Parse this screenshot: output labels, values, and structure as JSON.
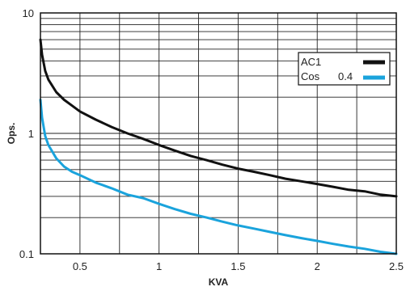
{
  "chart_data": {
    "type": "line",
    "x_axis": {
      "label": "KVA",
      "range": [
        0.25,
        2.5
      ],
      "ticks": [
        0.5,
        1,
        1.5,
        2,
        2.5
      ],
      "tick_labels": [
        "0.5",
        "1",
        "1.5",
        "2",
        "2.5"
      ]
    },
    "y_axis": {
      "label": "Ops.",
      "scale": "log",
      "range": [
        0.1,
        10
      ],
      "ticks": [
        0.1,
        1,
        10
      ],
      "tick_labels": [
        "0.1",
        "1",
        "10"
      ]
    },
    "grid": true,
    "legend": {
      "placement": "top-right",
      "entries": [
        {
          "label_a": "AC1",
          "label_b": "",
          "color": "#111111"
        },
        {
          "label_a": "Cos",
          "label_b": "0.4",
          "color": "#1aa3dc"
        }
      ]
    },
    "series": [
      {
        "name": "AC1",
        "color": "#111111",
        "points": [
          [
            0.25,
            6.0
          ],
          [
            0.26,
            4.5
          ],
          [
            0.28,
            3.3
          ],
          [
            0.3,
            2.8
          ],
          [
            0.35,
            2.2
          ],
          [
            0.4,
            1.9
          ],
          [
            0.45,
            1.7
          ],
          [
            0.5,
            1.52
          ],
          [
            0.6,
            1.3
          ],
          [
            0.7,
            1.13
          ],
          [
            0.8,
            1.0
          ],
          [
            0.9,
            0.9
          ],
          [
            1.0,
            0.8
          ],
          [
            1.1,
            0.72
          ],
          [
            1.2,
            0.65
          ],
          [
            1.3,
            0.6
          ],
          [
            1.4,
            0.55
          ],
          [
            1.5,
            0.51
          ],
          [
            1.6,
            0.48
          ],
          [
            1.7,
            0.45
          ],
          [
            1.8,
            0.42
          ],
          [
            1.9,
            0.4
          ],
          [
            2.0,
            0.38
          ],
          [
            2.1,
            0.36
          ],
          [
            2.2,
            0.34
          ],
          [
            2.3,
            0.33
          ],
          [
            2.4,
            0.31
          ],
          [
            2.5,
            0.3
          ]
        ]
      },
      {
        "name": "Cos 0.4",
        "color": "#1aa3dc",
        "points": [
          [
            0.25,
            1.9
          ],
          [
            0.26,
            1.35
          ],
          [
            0.28,
            0.95
          ],
          [
            0.3,
            0.8
          ],
          [
            0.35,
            0.62
          ],
          [
            0.4,
            0.53
          ],
          [
            0.45,
            0.48
          ],
          [
            0.5,
            0.45
          ],
          [
            0.6,
            0.39
          ],
          [
            0.7,
            0.35
          ],
          [
            0.8,
            0.31
          ],
          [
            0.9,
            0.29
          ],
          [
            1.0,
            0.26
          ],
          [
            1.1,
            0.235
          ],
          [
            1.2,
            0.215
          ],
          [
            1.3,
            0.2
          ],
          [
            1.4,
            0.185
          ],
          [
            1.5,
            0.172
          ],
          [
            1.6,
            0.162
          ],
          [
            1.7,
            0.152
          ],
          [
            1.8,
            0.143
          ],
          [
            1.9,
            0.135
          ],
          [
            2.0,
            0.128
          ],
          [
            2.1,
            0.121
          ],
          [
            2.2,
            0.115
          ],
          [
            2.3,
            0.11
          ],
          [
            2.4,
            0.104
          ],
          [
            2.5,
            0.1
          ]
        ]
      }
    ]
  }
}
